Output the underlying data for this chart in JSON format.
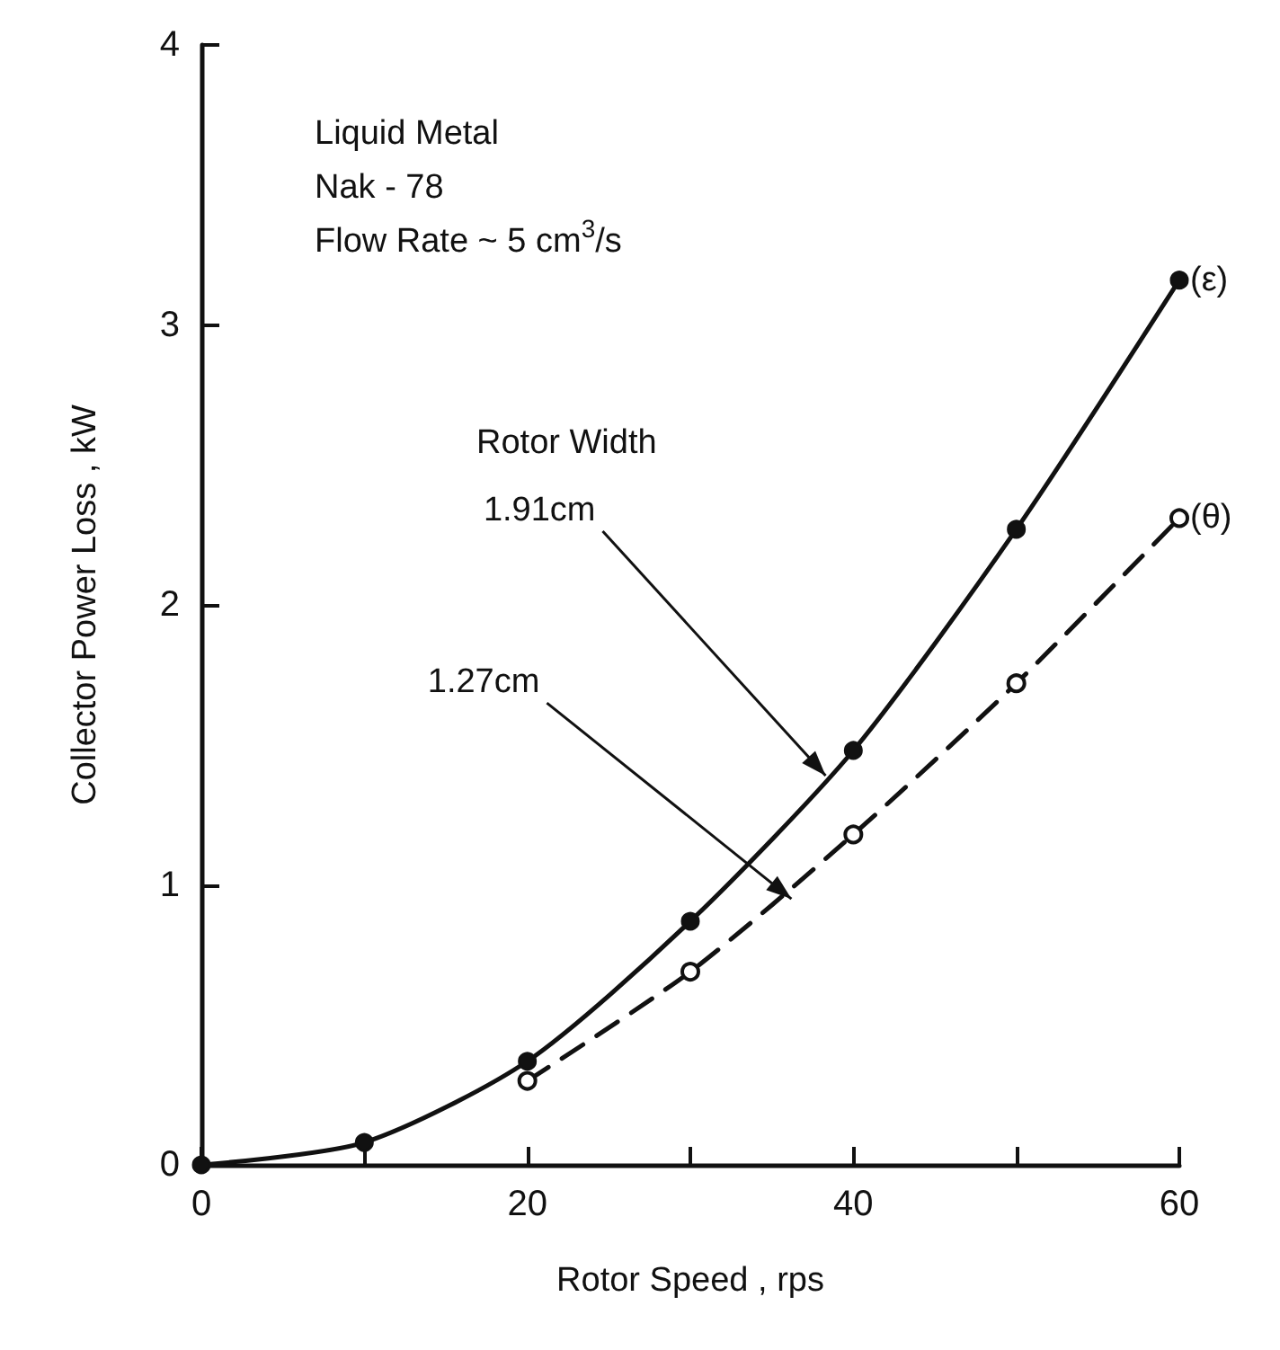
{
  "chart_data": {
    "type": "line",
    "xlabel": "Rotor Speed , rps",
    "ylabel": "Collector Power Loss , kW",
    "x": [
      0,
      10,
      20,
      30,
      40,
      50,
      60
    ],
    "series": [
      {
        "name": "(ε)",
        "color": "#111111",
        "line_style": "solid",
        "marker": "circle",
        "values": [
          0,
          0.08,
          0.37,
          0.87,
          1.48,
          2.27,
          3.16
        ]
      },
      {
        "name": "(θ)",
        "color": "#111111",
        "line_style": "dashed",
        "marker": "circle",
        "x": [
          20,
          30,
          40,
          50,
          60
        ],
        "values": [
          0.3,
          0.69,
          1.18,
          1.72,
          2.31
        ]
      }
    ],
    "xlim": [
      0,
      60
    ],
    "xticks": [
      0,
      {
        "value": 10,
        "label": null
      },
      20,
      {
        "value": 30,
        "label": null
      },
      40,
      {
        "value": 50,
        "label": null
      },
      60
    ],
    "ylim": [
      0,
      4
    ],
    "yticks": [
      0,
      1,
      2,
      3,
      4
    ],
    "grid": false,
    "legend": false,
    "annotations": [
      "Liquid Metal",
      "Nak - 78",
      "Flow Rate ~ 5 cm$^{3}$/s",
      "Rotor Width",
      {
        "text": "1.91cm",
        "x": 38.3,
        "y": 1.39
      },
      {
        "text": "1.27cm",
        "x": 36.2,
        "y": 0.95
      }
    ]
  }
}
